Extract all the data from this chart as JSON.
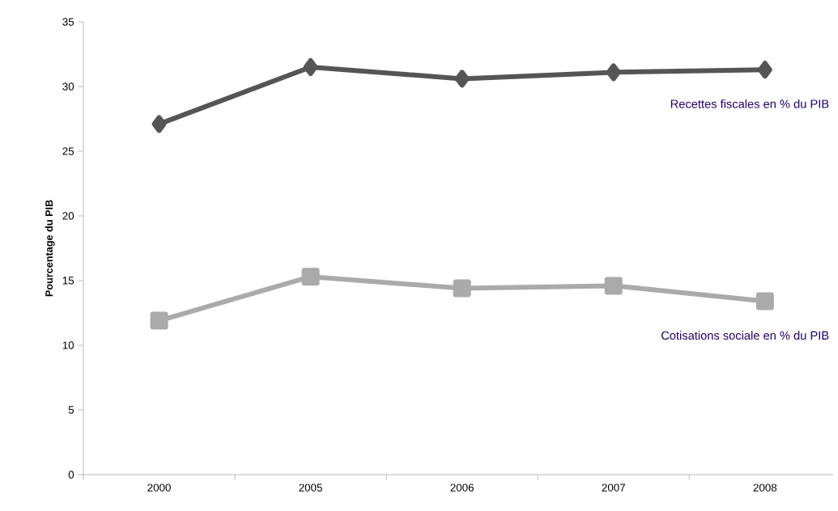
{
  "chart_data": {
    "type": "line",
    "ylabel": "Pourcentage du PIB",
    "categories": [
      "2000",
      "2005",
      "2006",
      "2007",
      "2008"
    ],
    "series": [
      {
        "name": "Recettes fiscales en % du PIB",
        "color": "#555555",
        "marker": "diamond",
        "values": [
          27.1,
          31.5,
          30.6,
          31.1,
          31.3
        ]
      },
      {
        "name": "Cotisations sociale en % du PIB",
        "color": "#aaaaaa",
        "marker": "square",
        "values": [
          11.9,
          15.3,
          14.4,
          14.6,
          13.4
        ]
      }
    ],
    "ylim": [
      0,
      35
    ],
    "yticks": [
      0,
      5,
      10,
      15,
      20,
      25,
      30,
      35
    ],
    "grid": false,
    "line_style": "solid"
  }
}
